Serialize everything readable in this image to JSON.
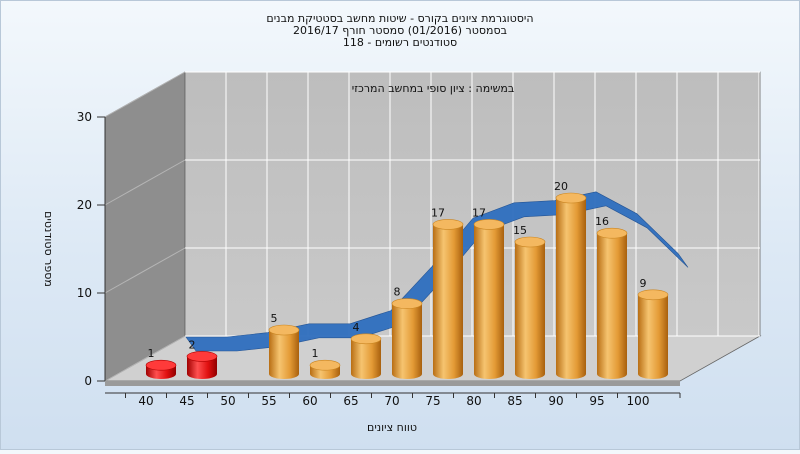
{
  "chart_data": {
    "type": "bar",
    "title_lines": [
      "היסטוגרמת ציונים בקורס - שיטות מחשב בסטטיקת מבנים",
      "בסמסטר (01/2016) סמסטר חורף 2016/17",
      "118 - סטודנטים רשומים"
    ],
    "subtitle": "במשימה : ציון סופי במחשב המרכזי",
    "xlabel": "טווח ציונים",
    "ylabel": "מספר סטודנטים",
    "categories": [
      "40",
      "45",
      "50",
      "55",
      "60",
      "65",
      "70",
      "75",
      "80",
      "85",
      "90",
      "95",
      "100"
    ],
    "values": [
      1,
      2,
      0,
      5,
      1,
      4,
      8,
      17,
      17,
      15,
      20,
      16,
      9
    ],
    "data_labels": [
      "1",
      "2",
      "",
      "5",
      "1",
      "4",
      "8",
      "17",
      "17",
      "15",
      "20",
      "16",
      "9"
    ],
    "ylim": [
      0,
      30
    ],
    "yticks": [
      "0",
      "10",
      "20",
      "30"
    ],
    "grid": true,
    "colors": {
      "fail": "#e01010",
      "pass": "#e8a23c",
      "curve": "#2f6fbf",
      "wall": "#c0c0c0",
      "side_wall": "#8c8c8c",
      "floor": "#d0d0d0"
    }
  }
}
